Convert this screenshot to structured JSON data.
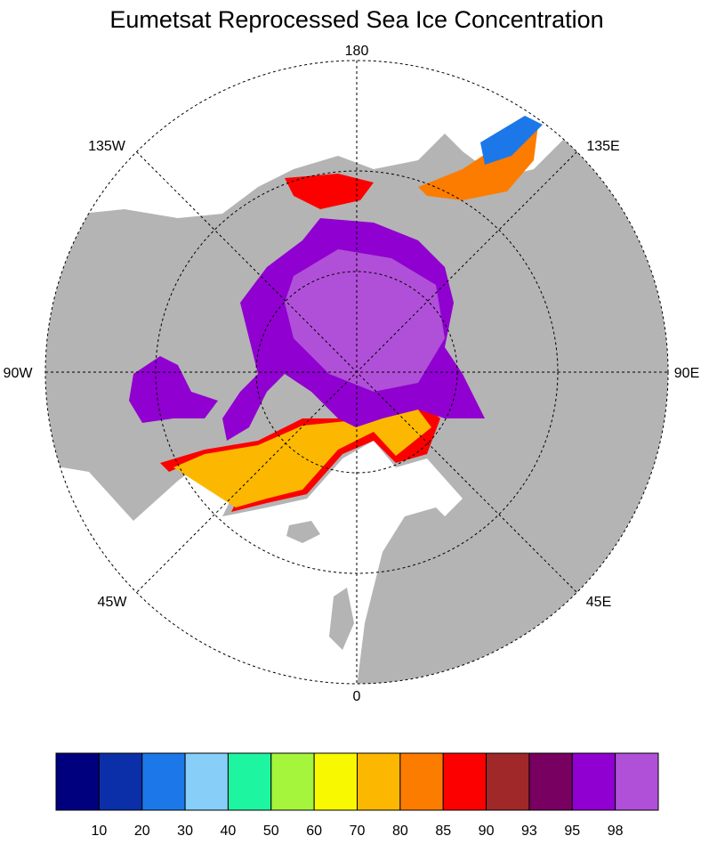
{
  "title": "Eumetsat Reprocessed Sea Ice Concentration",
  "longitude_labels": [
    "180",
    "135E",
    "90E",
    "45E",
    "0",
    "45W",
    "90W",
    "135W"
  ],
  "colorbar": {
    "colors": [
      "#00007f",
      "#0a2fa8",
      "#1c78e8",
      "#87cef8",
      "#1ef5a0",
      "#a4f53c",
      "#f8f800",
      "#fcb800",
      "#fc7c00",
      "#fc0000",
      "#a02828",
      "#780060",
      "#9000d0",
      "#b050d8"
    ],
    "labels": [
      "10",
      "20",
      "30",
      "40",
      "50",
      "60",
      "70",
      "80",
      "85",
      "90",
      "93",
      "95",
      "98"
    ]
  }
}
